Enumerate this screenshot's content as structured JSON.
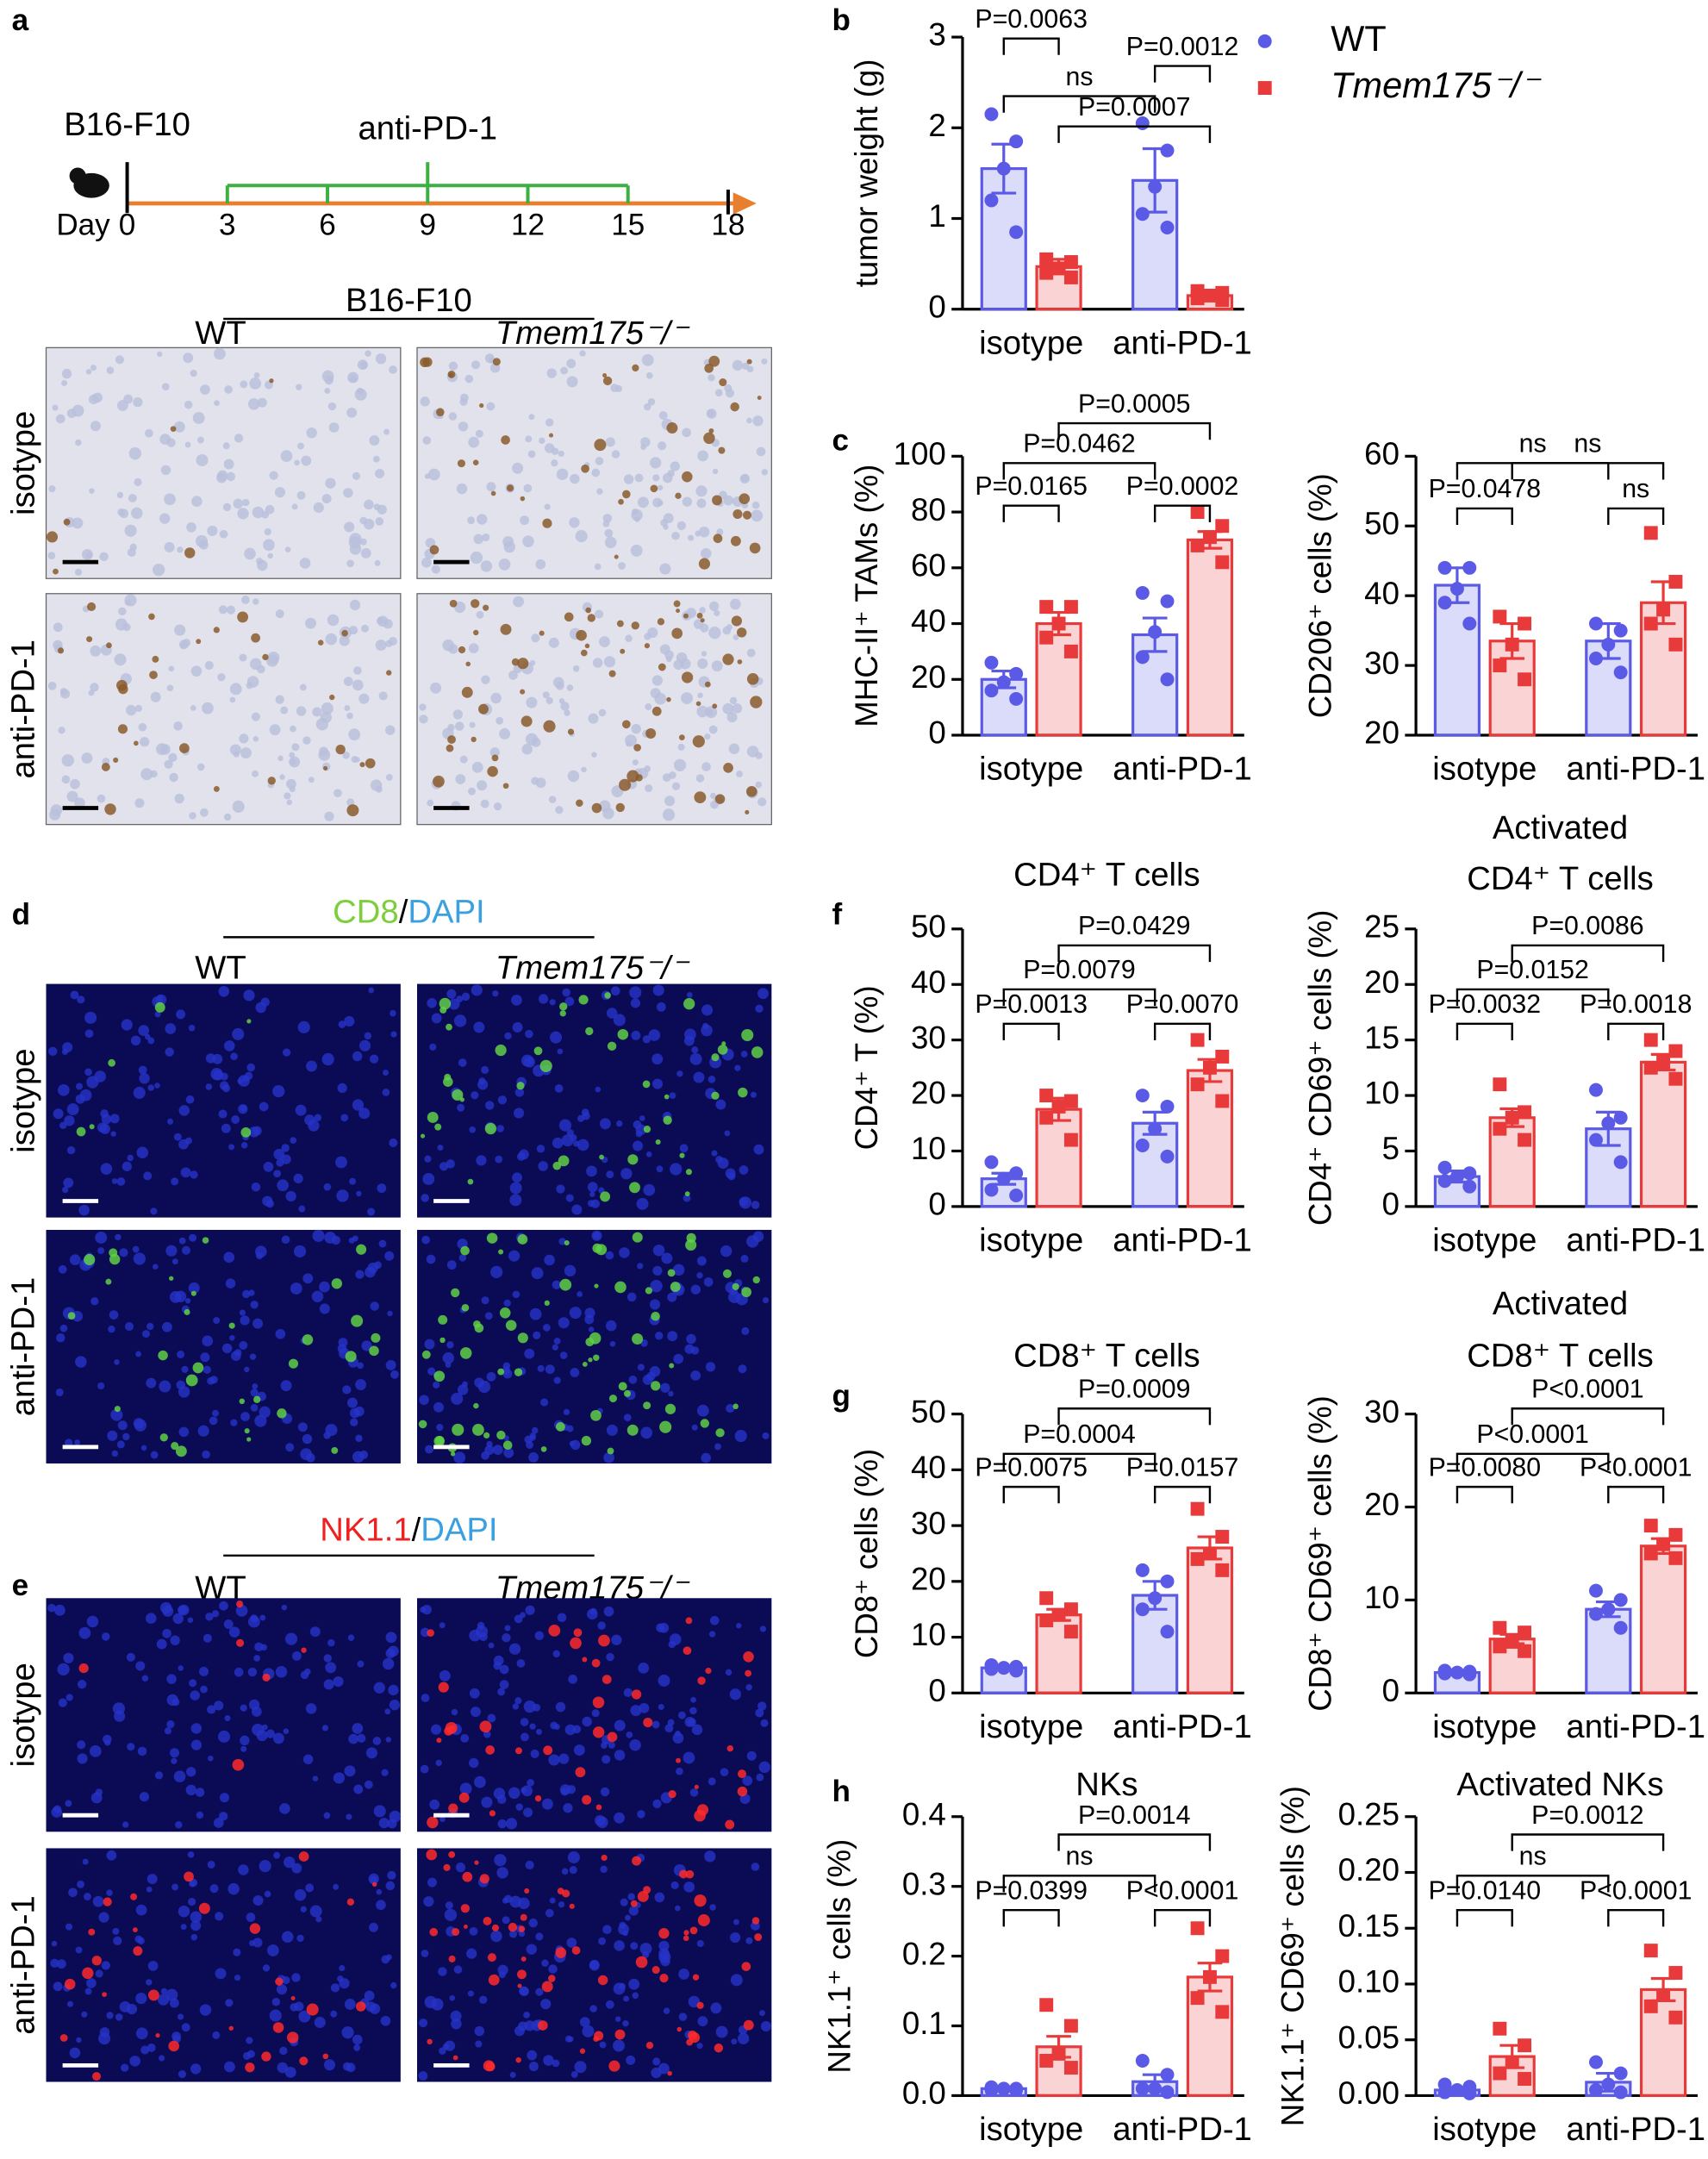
{
  "panel_labels": [
    "a",
    "b",
    "c",
    "d",
    "e",
    "f",
    "g",
    "h"
  ],
  "timeline": {
    "cell_line": "B16-F10",
    "treatment": "anti-PD-1",
    "day_label": "Day",
    "days": [
      0,
      3,
      6,
      9,
      12,
      15,
      18
    ]
  },
  "images": [
    {
      "title": [
        "B16-F10"
      ],
      "columns": [
        "WT",
        "Tmem175⁻/⁻"
      ],
      "rows": [
        "isotype",
        "anti-PD-1"
      ]
    },
    {
      "title": [
        "CD8",
        "/",
        "DAPI"
      ],
      "columns": [
        "WT",
        "Tmem175⁻/⁻"
      ],
      "rows": [
        "isotype",
        "anti-PD-1"
      ]
    },
    {
      "title": [
        "NK1.1",
        "/",
        "DAPI"
      ],
      "columns": [
        "WT",
        "Tmem175⁻/⁻"
      ],
      "rows": [
        "isotype",
        "anti-PD-1"
      ]
    }
  ],
  "chart_data": [
    {
      "type": "bar",
      "title": [],
      "ylabel": "tumor weight (g)",
      "categories": [
        "isotype",
        "anti-PD-1"
      ],
      "legend": "right",
      "series": [
        {
          "name": "WT",
          "color": "#5a5ae6",
          "values": [
            1.55,
            1.42
          ],
          "errors": [
            0.27,
            0.35
          ],
          "points": [
            [
              2.15,
              1.85,
              1.55,
              1.2,
              0.85
            ],
            [
              2.05,
              1.75,
              1.35,
              1.05,
              0.9
            ]
          ]
        },
        {
          "name": "Tmem175⁻/⁻",
          "color": "#e83a3a",
          "values": [
            0.47,
            0.15
          ],
          "errors": [
            0.08,
            0.03
          ],
          "points": [
            [
              0.55,
              0.52,
              0.45,
              0.4,
              0.35
            ],
            [
              0.2,
              0.18,
              0.15,
              0.12,
              0.1
            ]
          ]
        }
      ],
      "ylim": [
        0,
        3
      ],
      "yticks": [
        0,
        1,
        2,
        3
      ],
      "comparisons": [
        "P=0.0063",
        "P=0.0012",
        "ns",
        "P=0.0007"
      ]
    },
    {
      "type": "bar",
      "title": [],
      "ylabel": "MHC-II⁺ TAMs (%)",
      "categories": [
        "isotype",
        "anti-PD-1"
      ],
      "series": [
        {
          "color": "#5a5ae6",
          "values": [
            20,
            36
          ],
          "errors": [
            3,
            6
          ],
          "points": [
            [
              26,
              22,
              19,
              16,
              13
            ],
            [
              51,
              48,
              37,
              28,
              20
            ]
          ]
        },
        {
          "color": "#e83a3a",
          "values": [
            40,
            70
          ],
          "errors": [
            4,
            3
          ],
          "points": [
            [
              46,
              46,
              40,
              35,
              30
            ],
            [
              80,
              75,
              71,
              68,
              62
            ]
          ]
        }
      ],
      "ylim": [
        0,
        100
      ],
      "yticks": [
        0,
        20,
        40,
        60,
        80,
        100
      ],
      "comparisons": [
        "P=0.0165",
        "P=0.0002",
        "P=0.0462",
        "P=0.0005"
      ]
    },
    {
      "type": "bar",
      "title": [],
      "ylabel": "CD206⁺ cells (%)",
      "categories": [
        "isotype",
        "anti-PD-1"
      ],
      "series": [
        {
          "color": "#5a5ae6",
          "values": [
            41.5,
            33.5
          ],
          "errors": [
            2.5,
            2.5
          ],
          "points": [
            [
              44,
              44,
              41,
              39,
              36
            ],
            [
              36,
              35,
              33,
              31,
              29
            ]
          ]
        },
        {
          "color": "#e83a3a",
          "values": [
            33.5,
            39
          ],
          "errors": [
            2.5,
            3
          ],
          "points": [
            [
              37,
              36,
              33,
              30,
              28
            ],
            [
              49,
              42,
              38,
              36,
              33
            ]
          ]
        }
      ],
      "ylim": [
        20,
        60
      ],
      "yticks": [
        20,
        30,
        40,
        50,
        60
      ],
      "comparisons": [
        "P=0.0478",
        "ns",
        "ns",
        "ns"
      ]
    },
    {
      "type": "bar",
      "title": [
        "CD4⁺ T cells"
      ],
      "ylabel": "CD4⁺ T (%)",
      "categories": [
        "isotype",
        "anti-PD-1"
      ],
      "series": [
        {
          "color": "#5a5ae6",
          "values": [
            5,
            15
          ],
          "errors": [
            1,
            2
          ],
          "points": [
            [
              8,
              6,
              5,
              3,
              2
            ],
            [
              20,
              18,
              14,
              11,
              9
            ]
          ]
        },
        {
          "color": "#e83a3a",
          "values": [
            17.5,
            24.5
          ],
          "errors": [
            2,
            2
          ],
          "points": [
            [
              20,
              19,
              18,
              16,
              12
            ],
            [
              30,
              27,
              25,
              22,
              19
            ]
          ]
        }
      ],
      "ylim": [
        0,
        50
      ],
      "yticks": [
        0,
        10,
        20,
        30,
        40,
        50
      ],
      "comparisons": [
        "P=0.0013",
        "P=0.0070",
        "P=0.0079",
        "P=0.0429"
      ]
    },
    {
      "type": "bar",
      "title": [
        "Activated",
        "CD4⁺ T cells"
      ],
      "ylabel": "CD4⁺ CD69⁺ cells (%)",
      "categories": [
        "isotype",
        "anti-PD-1"
      ],
      "series": [
        {
          "color": "#5a5ae6",
          "values": [
            2.7,
            7
          ],
          "errors": [
            0.5,
            1.5
          ],
          "points": [
            [
              3.5,
              3,
              2.7,
              2.3,
              1.8
            ],
            [
              10.5,
              8,
              7.5,
              6,
              4
            ]
          ]
        },
        {
          "color": "#e83a3a",
          "values": [
            8,
            13
          ],
          "errors": [
            0.8,
            0.7
          ],
          "points": [
            [
              11,
              8.5,
              8,
              7,
              6
            ],
            [
              15,
              14,
              13,
              12.5,
              11.5
            ]
          ]
        }
      ],
      "ylim": [
        0,
        25
      ],
      "yticks": [
        0,
        5,
        10,
        15,
        20,
        25
      ],
      "comparisons": [
        "P=0.0032",
        "P=0.0018",
        "P=0.0152",
        "P=0.0086"
      ]
    },
    {
      "type": "bar",
      "title": [
        "CD8⁺ T cells"
      ],
      "ylabel": "CD8⁺ cells (%)",
      "categories": [
        "isotype",
        "anti-PD-1"
      ],
      "series": [
        {
          "color": "#5a5ae6",
          "values": [
            4.5,
            17.5
          ],
          "errors": [
            0.3,
            2.5
          ],
          "points": [
            [
              5,
              4.7,
              4.5,
              4.3,
              4
            ],
            [
              22,
              20,
              17,
              15,
              11
            ]
          ]
        },
        {
          "color": "#e83a3a",
          "values": [
            14,
            26
          ],
          "errors": [
            1,
            2
          ],
          "points": [
            [
              17,
              15,
              14,
              13,
              11
            ],
            [
              33,
              28,
              25,
              24,
              22
            ]
          ]
        }
      ],
      "ylim": [
        0,
        50
      ],
      "yticks": [
        0,
        10,
        20,
        30,
        40,
        50
      ],
      "comparisons": [
        "P=0.0075",
        "P=0.0157",
        "P=0.0004",
        "P=0.0009"
      ]
    },
    {
      "type": "bar",
      "title": [
        "Activated",
        "CD8⁺ T cells"
      ],
      "ylabel": "CD8⁺ CD69⁺ cells (%)",
      "categories": [
        "isotype",
        "anti-PD-1"
      ],
      "series": [
        {
          "color": "#5a5ae6",
          "values": [
            2.2,
            9
          ],
          "errors": [
            0.1,
            0.8
          ],
          "points": [
            [
              2.4,
              2.3,
              2.2,
              2.1,
              2
            ],
            [
              11,
              10,
              9,
              8.5,
              7
            ]
          ]
        },
        {
          "color": "#e83a3a",
          "values": [
            5.8,
            15.8
          ],
          "errors": [
            0.5,
            0.8
          ],
          "points": [
            [
              7,
              6.5,
              5.5,
              5,
              4.5
            ],
            [
              18,
              17,
              16,
              15,
              14.5
            ]
          ]
        }
      ],
      "ylim": [
        0,
        30
      ],
      "yticks": [
        0,
        10,
        20,
        30
      ],
      "comparisons": [
        "P=0.0080",
        "P<0.0001",
        "P<0.0001",
        "P<0.0001"
      ]
    },
    {
      "type": "bar",
      "title": [
        "NKs"
      ],
      "ylabel": "NK1.1⁺ cells (%)",
      "categories": [
        "isotype",
        "anti-PD-1"
      ],
      "series": [
        {
          "color": "#5a5ae6",
          "values": [
            0.01,
            0.02
          ],
          "errors": [
            0.002,
            0.01
          ],
          "points": [
            [
              0.012,
              0.01,
              0.01,
              0.008,
              0.008
            ],
            [
              0.05,
              0.03,
              0.01,
              0.01,
              0.005
            ]
          ]
        },
        {
          "color": "#e83a3a",
          "values": [
            0.07,
            0.17
          ],
          "errors": [
            0.015,
            0.02
          ],
          "points": [
            [
              0.13,
              0.1,
              0.06,
              0.05,
              0.04
            ],
            [
              0.24,
              0.2,
              0.17,
              0.14,
              0.12
            ]
          ]
        }
      ],
      "ylim": [
        0,
        0.4
      ],
      "yticks": [
        {
          "value": 0,
          "label": "0.0"
        },
        0.1,
        0.2,
        0.3,
        0.4
      ],
      "comparisons": [
        "P=0.0399",
        "P<0.0001",
        "ns",
        "P=0.0014"
      ]
    },
    {
      "type": "bar",
      "title": [
        "Activated NKs"
      ],
      "ylabel": "NK1.1⁺ CD69⁺ cells (%)",
      "categories": [
        "isotype",
        "anti-PD-1"
      ],
      "series": [
        {
          "color": "#5a5ae6",
          "values": [
            0.005,
            0.012
          ],
          "errors": [
            0.002,
            0.008
          ],
          "points": [
            [
              0.01,
              0.008,
              0.005,
              0.003,
              0.002
            ],
            [
              0.03,
              0.02,
              0.01,
              0.005,
              0.003
            ]
          ]
        },
        {
          "color": "#e83a3a",
          "values": [
            0.035,
            0.095
          ],
          "errors": [
            0.01,
            0.01
          ],
          "points": [
            [
              0.06,
              0.045,
              0.03,
              0.02,
              0.015
            ],
            [
              0.13,
              0.11,
              0.09,
              0.08,
              0.07
            ]
          ]
        }
      ],
      "ylim": [
        0,
        0.25
      ],
      "yticks": [
        {
          "value": 0,
          "label": "0.00"
        },
        0.05,
        {
          "value": 0.1,
          "label": "0.10"
        },
        0.15,
        {
          "value": 0.2,
          "label": "0.20"
        },
        0.25
      ],
      "comparisons": [
        "P=0.0140",
        "P<0.0001",
        "ns",
        "P=0.0012"
      ]
    }
  ]
}
